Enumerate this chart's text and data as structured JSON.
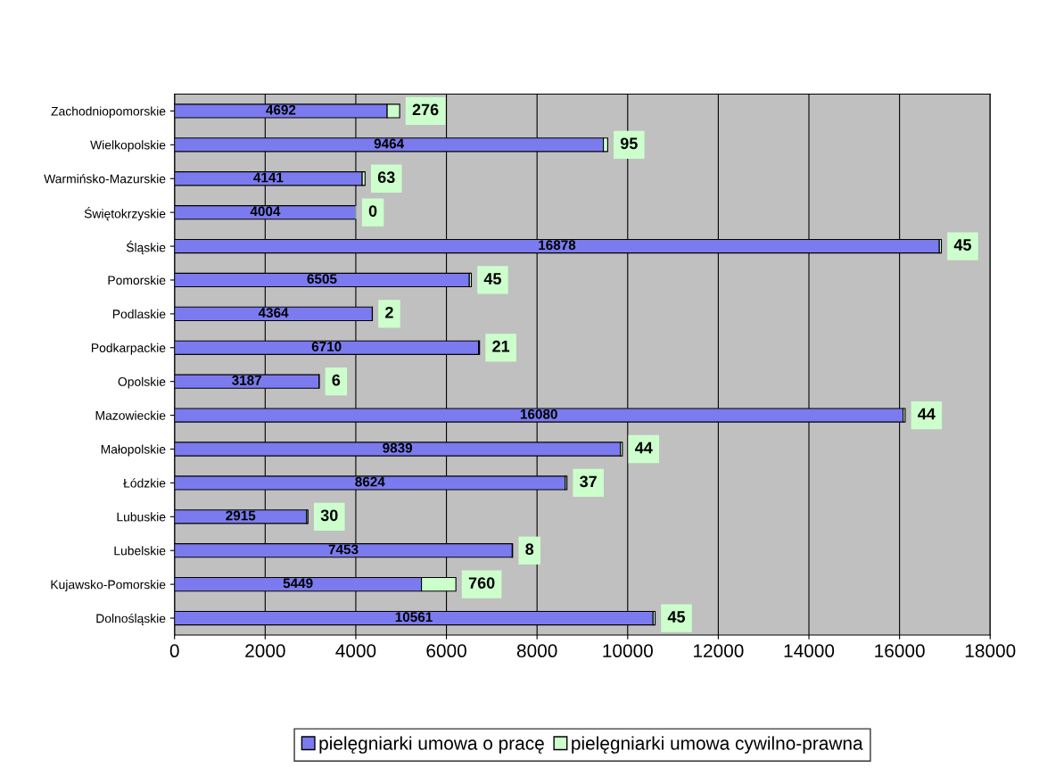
{
  "chart_data": {
    "type": "bar",
    "orientation": "horizontal",
    "stacked": true,
    "categories": [
      "Zachodniopomorskie",
      "Wielkopolskie",
      "Warmińsko-Mazurskie",
      "Świętokrzyskie",
      "Śląskie",
      "Pomorskie",
      "Podlaskie",
      "Podkarpackie",
      "Opolskie",
      "Mazowieckie",
      "Małopolskie",
      "Łódzkie",
      "Lubuskie",
      "Lubelskie",
      "Kujawsko-Pomorskie",
      "Dolnośląskie"
    ],
    "series": [
      {
        "name": "pielęgniarki umowa o pracę",
        "color": "#7b7bef",
        "values": [
          4692,
          9464,
          4141,
          4004,
          16878,
          6505,
          4364,
          6710,
          3187,
          16080,
          9839,
          8624,
          2915,
          7453,
          5449,
          10561
        ]
      },
      {
        "name": "pielęgniarki umowa cywilno-prawna",
        "color": "#ccffcc",
        "values": [
          276,
          95,
          63,
          0,
          45,
          45,
          2,
          21,
          6,
          44,
          44,
          37,
          30,
          8,
          760,
          45
        ]
      }
    ],
    "xlim": [
      0,
      18000
    ],
    "xticks": [
      0,
      2000,
      4000,
      6000,
      8000,
      10000,
      12000,
      14000,
      16000,
      18000
    ],
    "grid": "x",
    "legend": "bottom",
    "data_labels": true
  }
}
